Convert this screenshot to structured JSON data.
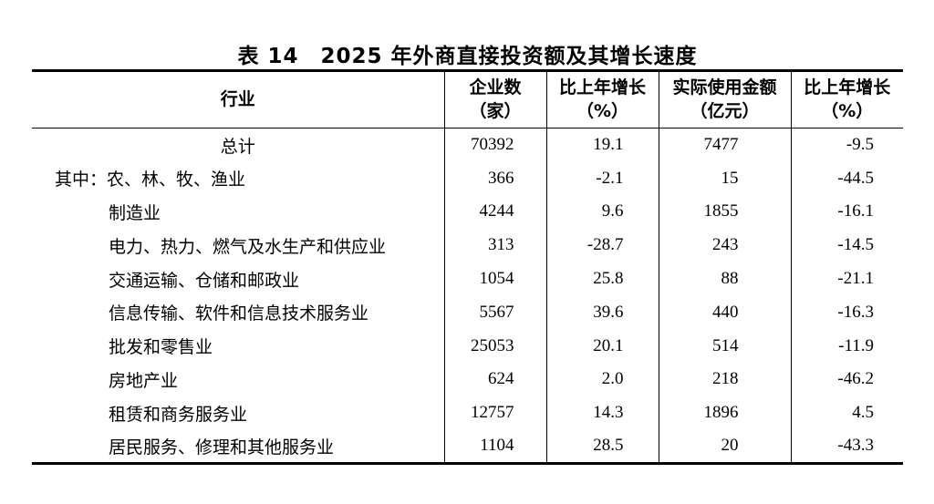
{
  "table": {
    "title": "表 14　2025 年外商直接投资额及其增长速度",
    "columns": [
      {
        "label": "行业",
        "sub": ""
      },
      {
        "label": "企业数",
        "sub": "（家）"
      },
      {
        "label": "比上年增长",
        "sub": "（%）"
      },
      {
        "label": "实际使用金额",
        "sub": "（亿元）"
      },
      {
        "label": "比上年增长",
        "sub": "（%）"
      }
    ],
    "rows": [
      {
        "prefix": "",
        "industry": "总计",
        "enterprises": "70392",
        "enterprises_growth": "19.1",
        "amount_used": "7477",
        "amount_growth": "-9.5"
      },
      {
        "prefix": "其中：",
        "industry": "农、林、牧、渔业",
        "enterprises": "366",
        "enterprises_growth": "-2.1",
        "amount_used": "15",
        "amount_growth": "-44.5"
      },
      {
        "prefix": "",
        "industry": "制造业",
        "enterprises": "4244",
        "enterprises_growth": "9.6",
        "amount_used": "1855",
        "amount_growth": "-16.1"
      },
      {
        "prefix": "",
        "industry": "电力、热力、燃气及水生产和供应业",
        "enterprises": "313",
        "enterprises_growth": "-28.7",
        "amount_used": "243",
        "amount_growth": "-14.5"
      },
      {
        "prefix": "",
        "industry": "交通运输、仓储和邮政业",
        "enterprises": "1054",
        "enterprises_growth": "25.8",
        "amount_used": "88",
        "amount_growth": "-21.1"
      },
      {
        "prefix": "",
        "industry": "信息传输、软件和信息技术服务业",
        "enterprises": "5567",
        "enterprises_growth": "39.6",
        "amount_used": "440",
        "amount_growth": "-16.3"
      },
      {
        "prefix": "",
        "industry": "批发和零售业",
        "enterprises": "25053",
        "enterprises_growth": "20.1",
        "amount_used": "514",
        "amount_growth": "-11.9"
      },
      {
        "prefix": "",
        "industry": "房地产业",
        "enterprises": "624",
        "enterprises_growth": "2.0",
        "amount_used": "218",
        "amount_growth": "-46.2"
      },
      {
        "prefix": "",
        "industry": "租赁和商务服务业",
        "enterprises": "12757",
        "enterprises_growth": "14.3",
        "amount_used": "1896",
        "amount_growth": "4.5"
      },
      {
        "prefix": "",
        "industry": "居民服务、修理和其他服务业",
        "enterprises": "1104",
        "enterprises_growth": "28.5",
        "amount_used": "20",
        "amount_growth": "-43.3"
      }
    ]
  }
}
